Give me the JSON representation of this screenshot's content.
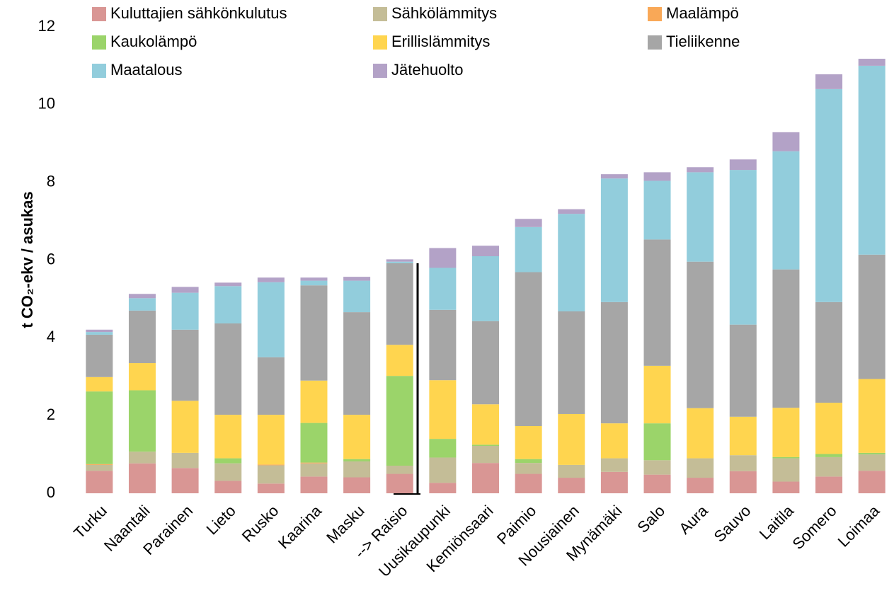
{
  "chart_data": {
    "type": "stacked_bar",
    "y_label": "t CO₂-ekv / asukas",
    "categories": [
      "Turku",
      "Naantali",
      "Parainen",
      "Lieto",
      "Rusko",
      "Kaarina",
      "Masku",
      "--> Raisio",
      "Uusikaupunki",
      "Kemiönsaari",
      "Paimio",
      "Nousiainen",
      "Mynämäki",
      "Salo",
      "Aura",
      "Sauvo",
      "Laitila",
      "Somero",
      "Loimaa"
    ],
    "series": [
      {
        "name": "Kuluttajien sähkönkulutus",
        "color": "#d99694",
        "values": [
          0.58,
          0.77,
          0.65,
          0.32,
          0.25,
          0.43,
          0.41,
          0.5,
          0.27,
          0.78,
          0.5,
          0.4,
          0.55,
          0.48,
          0.4,
          0.57,
          0.3,
          0.43,
          0.58
        ]
      },
      {
        "name": "Sähkölämmitys",
        "color": "#c4bd97",
        "values": [
          0.15,
          0.3,
          0.39,
          0.45,
          0.47,
          0.34,
          0.41,
          0.21,
          0.65,
          0.44,
          0.28,
          0.33,
          0.35,
          0.37,
          0.5,
          0.41,
          0.6,
          0.5,
          0.42
        ]
      },
      {
        "name": "Maalämpö",
        "color": "#f9a857",
        "values": [
          0.02,
          0,
          0,
          0,
          0.02,
          0.02,
          0,
          0,
          0,
          0,
          0,
          0,
          0,
          0,
          0,
          0,
          0,
          0,
          0
        ]
      },
      {
        "name": "Kaukolämpö",
        "color": "#9bd46a",
        "values": [
          1.87,
          1.58,
          0,
          0.13,
          0,
          1.02,
          0.06,
          2.31,
          0.48,
          0.03,
          0.1,
          0,
          0,
          0.95,
          0,
          0,
          0.03,
          0.08,
          0.04
        ]
      },
      {
        "name": "Erillislämmitys",
        "color": "#ffd54f",
        "values": [
          0.37,
          0.7,
          1.34,
          1.12,
          1.28,
          1.09,
          1.14,
          0.8,
          1.51,
          1.04,
          0.85,
          1.31,
          0.9,
          1.48,
          1.29,
          0.99,
          1.27,
          1.32,
          1.9
        ]
      },
      {
        "name": "Tieliikenne",
        "color": "#a6a6a6",
        "values": [
          1.09,
          1.35,
          1.83,
          2.35,
          1.48,
          2.45,
          2.64,
          2.1,
          1.81,
          2.14,
          3.96,
          2.64,
          3.12,
          3.25,
          3.77,
          2.37,
          3.56,
          2.59,
          3.2
        ]
      },
      {
        "name": "Maatalous",
        "color": "#92cddc",
        "values": [
          0.07,
          0.32,
          0.95,
          0.96,
          1.93,
          0.12,
          0.81,
          0.04,
          1.08,
          1.67,
          1.16,
          2.51,
          3.18,
          1.51,
          2.3,
          3.98,
          3.04,
          5.48,
          4.86
        ]
      },
      {
        "name": "Jätehuolto",
        "color": "#b3a2c7",
        "values": [
          0.06,
          0.11,
          0.15,
          0.09,
          0.12,
          0.08,
          0.1,
          0.06,
          0.51,
          0.27,
          0.21,
          0.12,
          0.11,
          0.22,
          0.13,
          0.27,
          0.49,
          0.38,
          0.18
        ]
      }
    ],
    "ylim": [
      0,
      12
    ],
    "yticks": [
      0,
      2,
      4,
      6,
      8,
      10,
      12
    ]
  }
}
